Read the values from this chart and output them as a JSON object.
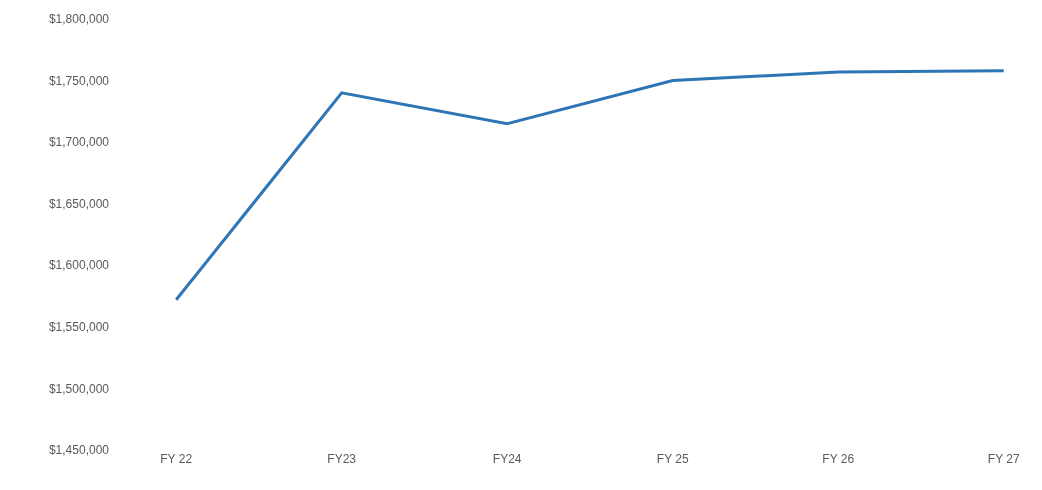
{
  "chart_data": {
    "type": "line",
    "categories": [
      "FY 22",
      "FY23",
      "FY24",
      "FY 25",
      "FY 26",
      "FY 27"
    ],
    "series": [
      {
        "color": "#2e75b6",
        "values": [
          1572000,
          1740000,
          1715000,
          1750000,
          1757000,
          1758000
        ]
      }
    ],
    "ylim": [
      1450000,
      1800000
    ],
    "yticks": [
      {
        "value": 1450000,
        "label": "$1,450,000"
      },
      {
        "value": 1500000,
        "label": "$1,500,000"
      },
      {
        "value": 1550000,
        "label": "$1,550,000"
      },
      {
        "value": 1600000,
        "label": "$1,600,000"
      },
      {
        "value": 1650000,
        "label": "$1,650,000"
      },
      {
        "value": 1700000,
        "label": "$1,700,000"
      },
      {
        "value": 1750000,
        "label": "$1,750,000"
      },
      {
        "value": 1800000,
        "label": "$1,800,000"
      }
    ],
    "grid": false,
    "legend": false,
    "marker": "none",
    "line_style": "solid"
  }
}
